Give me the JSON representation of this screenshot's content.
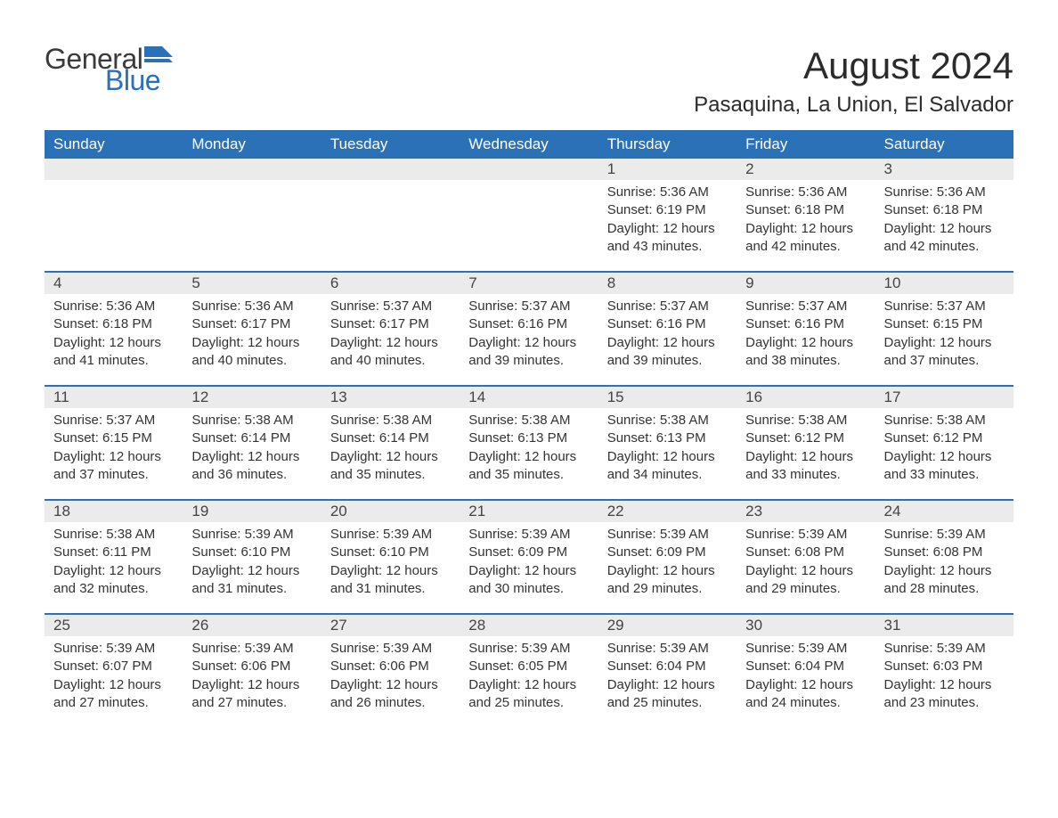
{
  "brand": {
    "general": "General",
    "blue": "Blue"
  },
  "title": "August 2024",
  "location": "Pasaquina, La Union, El Salvador",
  "colors": {
    "header_bg": "#2a71b8",
    "header_text": "#ffffff",
    "daynum_bg": "#ebebeb",
    "week_border": "#2a71b8",
    "body_text": "#333333",
    "logo_blue": "#2a71b8"
  },
  "day_headers": [
    "Sunday",
    "Monday",
    "Tuesday",
    "Wednesday",
    "Thursday",
    "Friday",
    "Saturday"
  ],
  "weeks": [
    [
      {
        "empty": true
      },
      {
        "empty": true
      },
      {
        "empty": true
      },
      {
        "empty": true
      },
      {
        "n": "1",
        "sunrise": "Sunrise: 5:36 AM",
        "sunset": "Sunset: 6:19 PM",
        "d1": "Daylight: 12 hours",
        "d2": "and 43 minutes."
      },
      {
        "n": "2",
        "sunrise": "Sunrise: 5:36 AM",
        "sunset": "Sunset: 6:18 PM",
        "d1": "Daylight: 12 hours",
        "d2": "and 42 minutes."
      },
      {
        "n": "3",
        "sunrise": "Sunrise: 5:36 AM",
        "sunset": "Sunset: 6:18 PM",
        "d1": "Daylight: 12 hours",
        "d2": "and 42 minutes."
      }
    ],
    [
      {
        "n": "4",
        "sunrise": "Sunrise: 5:36 AM",
        "sunset": "Sunset: 6:18 PM",
        "d1": "Daylight: 12 hours",
        "d2": "and 41 minutes."
      },
      {
        "n": "5",
        "sunrise": "Sunrise: 5:36 AM",
        "sunset": "Sunset: 6:17 PM",
        "d1": "Daylight: 12 hours",
        "d2": "and 40 minutes."
      },
      {
        "n": "6",
        "sunrise": "Sunrise: 5:37 AM",
        "sunset": "Sunset: 6:17 PM",
        "d1": "Daylight: 12 hours",
        "d2": "and 40 minutes."
      },
      {
        "n": "7",
        "sunrise": "Sunrise: 5:37 AM",
        "sunset": "Sunset: 6:16 PM",
        "d1": "Daylight: 12 hours",
        "d2": "and 39 minutes."
      },
      {
        "n": "8",
        "sunrise": "Sunrise: 5:37 AM",
        "sunset": "Sunset: 6:16 PM",
        "d1": "Daylight: 12 hours",
        "d2": "and 39 minutes."
      },
      {
        "n": "9",
        "sunrise": "Sunrise: 5:37 AM",
        "sunset": "Sunset: 6:16 PM",
        "d1": "Daylight: 12 hours",
        "d2": "and 38 minutes."
      },
      {
        "n": "10",
        "sunrise": "Sunrise: 5:37 AM",
        "sunset": "Sunset: 6:15 PM",
        "d1": "Daylight: 12 hours",
        "d2": "and 37 minutes."
      }
    ],
    [
      {
        "n": "11",
        "sunrise": "Sunrise: 5:37 AM",
        "sunset": "Sunset: 6:15 PM",
        "d1": "Daylight: 12 hours",
        "d2": "and 37 minutes."
      },
      {
        "n": "12",
        "sunrise": "Sunrise: 5:38 AM",
        "sunset": "Sunset: 6:14 PM",
        "d1": "Daylight: 12 hours",
        "d2": "and 36 minutes."
      },
      {
        "n": "13",
        "sunrise": "Sunrise: 5:38 AM",
        "sunset": "Sunset: 6:14 PM",
        "d1": "Daylight: 12 hours",
        "d2": "and 35 minutes."
      },
      {
        "n": "14",
        "sunrise": "Sunrise: 5:38 AM",
        "sunset": "Sunset: 6:13 PM",
        "d1": "Daylight: 12 hours",
        "d2": "and 35 minutes."
      },
      {
        "n": "15",
        "sunrise": "Sunrise: 5:38 AM",
        "sunset": "Sunset: 6:13 PM",
        "d1": "Daylight: 12 hours",
        "d2": "and 34 minutes."
      },
      {
        "n": "16",
        "sunrise": "Sunrise: 5:38 AM",
        "sunset": "Sunset: 6:12 PM",
        "d1": "Daylight: 12 hours",
        "d2": "and 33 minutes."
      },
      {
        "n": "17",
        "sunrise": "Sunrise: 5:38 AM",
        "sunset": "Sunset: 6:12 PM",
        "d1": "Daylight: 12 hours",
        "d2": "and 33 minutes."
      }
    ],
    [
      {
        "n": "18",
        "sunrise": "Sunrise: 5:38 AM",
        "sunset": "Sunset: 6:11 PM",
        "d1": "Daylight: 12 hours",
        "d2": "and 32 minutes."
      },
      {
        "n": "19",
        "sunrise": "Sunrise: 5:39 AM",
        "sunset": "Sunset: 6:10 PM",
        "d1": "Daylight: 12 hours",
        "d2": "and 31 minutes."
      },
      {
        "n": "20",
        "sunrise": "Sunrise: 5:39 AM",
        "sunset": "Sunset: 6:10 PM",
        "d1": "Daylight: 12 hours",
        "d2": "and 31 minutes."
      },
      {
        "n": "21",
        "sunrise": "Sunrise: 5:39 AM",
        "sunset": "Sunset: 6:09 PM",
        "d1": "Daylight: 12 hours",
        "d2": "and 30 minutes."
      },
      {
        "n": "22",
        "sunrise": "Sunrise: 5:39 AM",
        "sunset": "Sunset: 6:09 PM",
        "d1": "Daylight: 12 hours",
        "d2": "and 29 minutes."
      },
      {
        "n": "23",
        "sunrise": "Sunrise: 5:39 AM",
        "sunset": "Sunset: 6:08 PM",
        "d1": "Daylight: 12 hours",
        "d2": "and 29 minutes."
      },
      {
        "n": "24",
        "sunrise": "Sunrise: 5:39 AM",
        "sunset": "Sunset: 6:08 PM",
        "d1": "Daylight: 12 hours",
        "d2": "and 28 minutes."
      }
    ],
    [
      {
        "n": "25",
        "sunrise": "Sunrise: 5:39 AM",
        "sunset": "Sunset: 6:07 PM",
        "d1": "Daylight: 12 hours",
        "d2": "and 27 minutes."
      },
      {
        "n": "26",
        "sunrise": "Sunrise: 5:39 AM",
        "sunset": "Sunset: 6:06 PM",
        "d1": "Daylight: 12 hours",
        "d2": "and 27 minutes."
      },
      {
        "n": "27",
        "sunrise": "Sunrise: 5:39 AM",
        "sunset": "Sunset: 6:06 PM",
        "d1": "Daylight: 12 hours",
        "d2": "and 26 minutes."
      },
      {
        "n": "28",
        "sunrise": "Sunrise: 5:39 AM",
        "sunset": "Sunset: 6:05 PM",
        "d1": "Daylight: 12 hours",
        "d2": "and 25 minutes."
      },
      {
        "n": "29",
        "sunrise": "Sunrise: 5:39 AM",
        "sunset": "Sunset: 6:04 PM",
        "d1": "Daylight: 12 hours",
        "d2": "and 25 minutes."
      },
      {
        "n": "30",
        "sunrise": "Sunrise: 5:39 AM",
        "sunset": "Sunset: 6:04 PM",
        "d1": "Daylight: 12 hours",
        "d2": "and 24 minutes."
      },
      {
        "n": "31",
        "sunrise": "Sunrise: 5:39 AM",
        "sunset": "Sunset: 6:03 PM",
        "d1": "Daylight: 12 hours",
        "d2": "and 23 minutes."
      }
    ]
  ]
}
